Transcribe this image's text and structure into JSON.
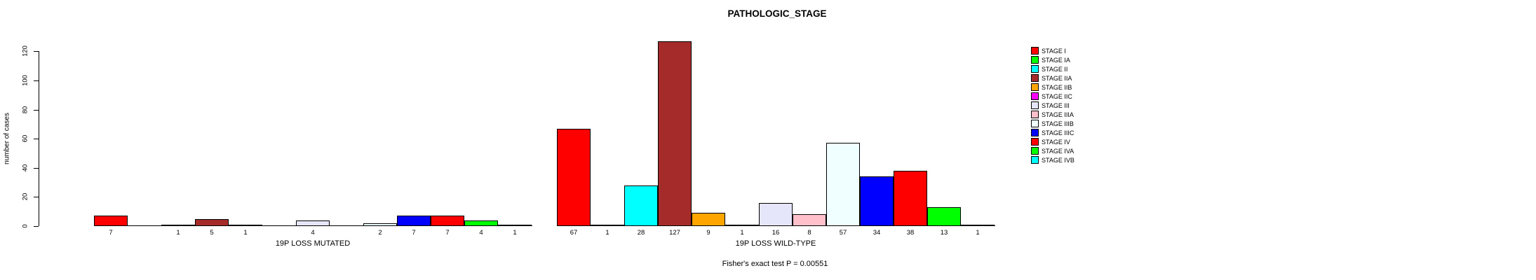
{
  "chart_data": {
    "type": "bar",
    "title": "PATHOLOGIC_STAGE",
    "xlabel": "",
    "ylabel": "number of cases",
    "ylim": [
      0,
      120
    ],
    "yticks": [
      0,
      20,
      40,
      60,
      80,
      100,
      120
    ],
    "grid": false,
    "legend_position": "right",
    "categories": [
      "19P LOSS MUTATED",
      "19P LOSS WILD-TYPE"
    ],
    "series": [
      {
        "name": "STAGE I",
        "color": "#FF0000",
        "values": [
          7,
          67
        ]
      },
      {
        "name": "STAGE IA",
        "color": "#00FF00",
        "values": [
          0,
          1
        ]
      },
      {
        "name": "STAGE II",
        "color": "#00FFFF",
        "values": [
          1,
          28
        ]
      },
      {
        "name": "STAGE IIA",
        "color": "#A52A2A",
        "values": [
          5,
          127
        ]
      },
      {
        "name": "STAGE IIB",
        "color": "#FFA500",
        "values": [
          1,
          9
        ]
      },
      {
        "name": "STAGE IIC",
        "color": "#FF00FF",
        "values": [
          0,
          1
        ]
      },
      {
        "name": "STAGE III",
        "color": "#E6E6FA",
        "values": [
          4,
          16
        ]
      },
      {
        "name": "STAGE IIIA",
        "color": "#FFC0CB",
        "values": [
          0,
          8
        ]
      },
      {
        "name": "STAGE IIIB",
        "color": "#F0FFFF",
        "values": [
          2,
          57
        ]
      },
      {
        "name": "STAGE IIIC",
        "color": "#0000FF",
        "values": [
          7,
          34
        ]
      },
      {
        "name": "STAGE IV",
        "color": "#FF0000",
        "values": [
          7,
          38
        ]
      },
      {
        "name": "STAGE IVA",
        "color": "#00FF00",
        "values": [
          4,
          13
        ]
      },
      {
        "name": "STAGE IVB",
        "color": "#00FFFF",
        "values": [
          1,
          1
        ]
      }
    ],
    "bar_value_labels_shown": true,
    "annotation": "Fisher's exact test P = 0.00551"
  }
}
